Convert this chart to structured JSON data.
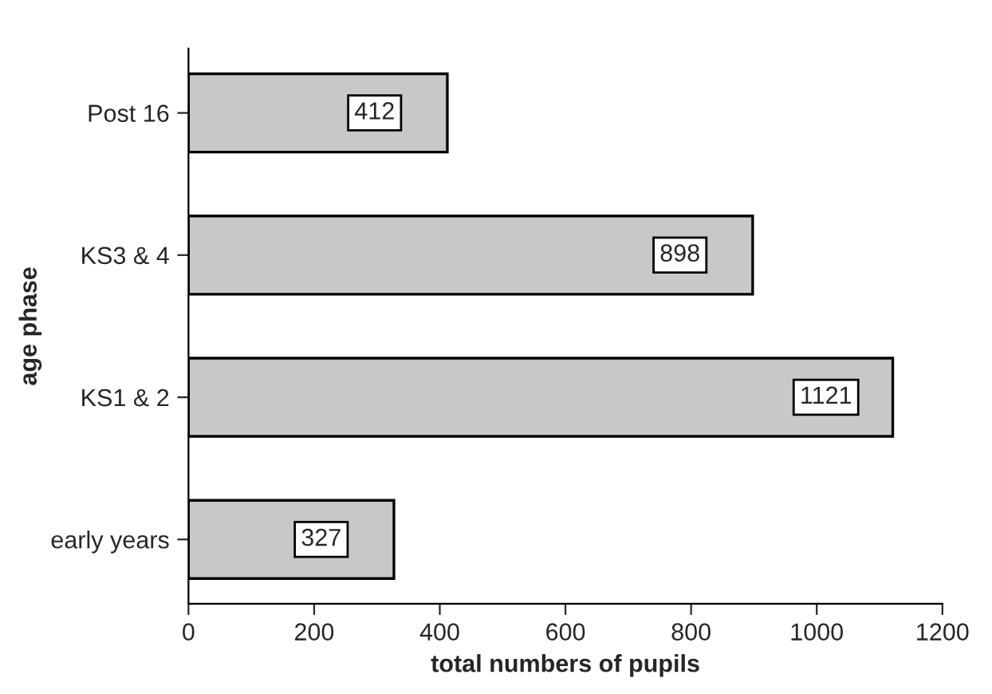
{
  "chart_data": {
    "type": "bar",
    "orientation": "horizontal",
    "categories": [
      "Post 16",
      "KS3 & 4",
      "KS1 & 2",
      "early years"
    ],
    "values": [
      412,
      898,
      1121,
      327
    ],
    "color": "#c8c8c8",
    "xlabel": "total numbers of pupils",
    "ylabel": "age phase",
    "xlim": [
      0,
      1200
    ],
    "xticks": [
      0,
      200,
      400,
      600,
      800,
      1000,
      1200
    ],
    "data_labels": true,
    "grid": false,
    "legend": false
  }
}
